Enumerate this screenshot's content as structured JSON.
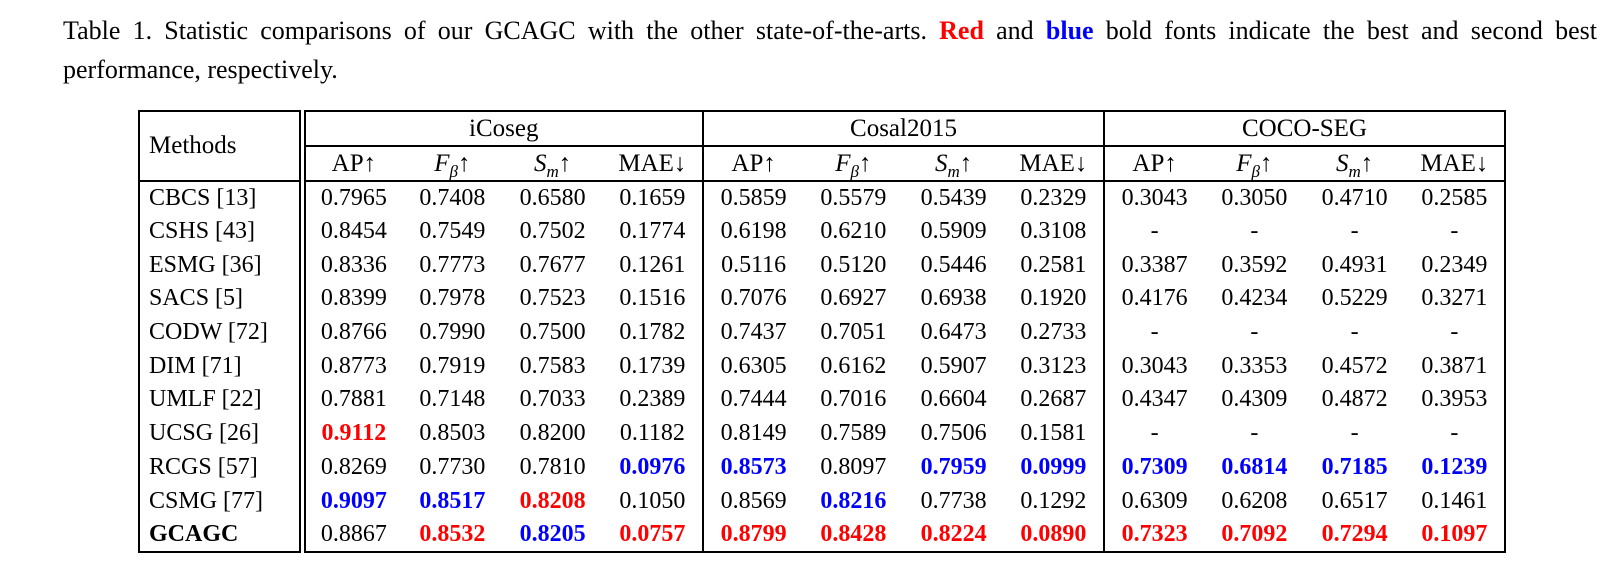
{
  "caption": {
    "part1": "Table 1. Statistic comparisons of our GCAGC with the other state-of-the-arts. ",
    "red_word": "Red",
    "part2": " and ",
    "blue_word": "blue",
    "part3": " bold fonts indicate the best and second best performance, respectively."
  },
  "colors": {
    "best": "#ff0000",
    "second_best": "#0000ff"
  },
  "table": {
    "methods_header": "Methods",
    "groups": [
      "iCoseg",
      "Cosal2015",
      "COCO-SEG"
    ],
    "metrics": [
      {
        "key": "ap",
        "label": "AP",
        "sub": "",
        "italic": false,
        "arrow": "↑"
      },
      {
        "key": "f-beta",
        "label": "F",
        "sub": "β",
        "italic": true,
        "arrow": "↑"
      },
      {
        "key": "s-m",
        "label": "S",
        "sub": "m",
        "italic": true,
        "arrow": "↑"
      },
      {
        "key": "mae",
        "label": "MAE",
        "sub": "",
        "italic": false,
        "arrow": "↓"
      }
    ],
    "rows": [
      {
        "method": "CBCS [13]",
        "bold": false,
        "values": [
          "0.7965",
          "0.7408",
          "0.6580",
          "0.1659",
          "0.5859",
          "0.5579",
          "0.5439",
          "0.2329",
          "0.3043",
          "0.3050",
          "0.4710",
          "0.2585"
        ],
        "styles": [
          "n",
          "n",
          "n",
          "n",
          "n",
          "n",
          "n",
          "n",
          "n",
          "n",
          "n",
          "n"
        ]
      },
      {
        "method": "CSHS [43]",
        "bold": false,
        "values": [
          "0.8454",
          "0.7549",
          "0.7502",
          "0.1774",
          "0.6198",
          "0.6210",
          "0.5909",
          "0.3108",
          "-",
          "-",
          "-",
          "-"
        ],
        "styles": [
          "n",
          "n",
          "n",
          "n",
          "n",
          "n",
          "n",
          "n",
          "n",
          "n",
          "n",
          "n"
        ]
      },
      {
        "method": "ESMG [36]",
        "bold": false,
        "values": [
          "0.8336",
          "0.7773",
          "0.7677",
          "0.1261",
          "0.5116",
          "0.5120",
          "0.5446",
          "0.2581",
          "0.3387",
          "0.3592",
          "0.4931",
          "0.2349"
        ],
        "styles": [
          "n",
          "n",
          "n",
          "n",
          "n",
          "n",
          "n",
          "n",
          "n",
          "n",
          "n",
          "n"
        ]
      },
      {
        "method": "SACS [5]",
        "bold": false,
        "values": [
          "0.8399",
          "0.7978",
          "0.7523",
          "0.1516",
          "0.7076",
          "0.6927",
          "0.6938",
          "0.1920",
          "0.4176",
          "0.4234",
          "0.5229",
          "0.3271"
        ],
        "styles": [
          "n",
          "n",
          "n",
          "n",
          "n",
          "n",
          "n",
          "n",
          "n",
          "n",
          "n",
          "n"
        ]
      },
      {
        "method": "CODW [72]",
        "bold": false,
        "values": [
          "0.8766",
          "0.7990",
          "0.7500",
          "0.1782",
          "0.7437",
          "0.7051",
          "0.6473",
          "0.2733",
          "-",
          "-",
          "-",
          "-"
        ],
        "styles": [
          "n",
          "n",
          "n",
          "n",
          "n",
          "n",
          "n",
          "n",
          "n",
          "n",
          "n",
          "n"
        ]
      },
      {
        "method": "DIM [71]",
        "bold": false,
        "values": [
          "0.8773",
          "0.7919",
          "0.7583",
          "0.1739",
          "0.6305",
          "0.6162",
          "0.5907",
          "0.3123",
          "0.3043",
          "0.3353",
          "0.4572",
          "0.3871"
        ],
        "styles": [
          "n",
          "n",
          "n",
          "n",
          "n",
          "n",
          "n",
          "n",
          "n",
          "n",
          "n",
          "n"
        ]
      },
      {
        "method": "UMLF [22]",
        "bold": false,
        "values": [
          "0.7881",
          "0.7148",
          "0.7033",
          "0.2389",
          "0.7444",
          "0.7016",
          "0.6604",
          "0.2687",
          "0.4347",
          "0.4309",
          "0.4872",
          "0.3953"
        ],
        "styles": [
          "n",
          "n",
          "n",
          "n",
          "n",
          "n",
          "n",
          "n",
          "n",
          "n",
          "n",
          "n"
        ]
      },
      {
        "method": "UCSG [26]",
        "bold": false,
        "values": [
          "0.9112",
          "0.8503",
          "0.8200",
          "0.1182",
          "0.8149",
          "0.7589",
          "0.7506",
          "0.1581",
          "-",
          "-",
          "-",
          "-"
        ],
        "styles": [
          "r",
          "n",
          "n",
          "n",
          "n",
          "n",
          "n",
          "n",
          "n",
          "n",
          "n",
          "n"
        ]
      },
      {
        "method": "RCGS [57]",
        "bold": false,
        "values": [
          "0.8269",
          "0.7730",
          "0.7810",
          "0.0976",
          "0.8573",
          "0.8097",
          "0.7959",
          "0.0999",
          "0.7309",
          "0.6814",
          "0.7185",
          "0.1239"
        ],
        "styles": [
          "n",
          "n",
          "n",
          "b",
          "b",
          "n",
          "b",
          "b",
          "b",
          "b",
          "b",
          "b"
        ]
      },
      {
        "method": "CSMG [77]",
        "bold": false,
        "values": [
          "0.9097",
          "0.8517",
          "0.8208",
          "0.1050",
          "0.8569",
          "0.8216",
          "0.7738",
          "0.1292",
          "0.6309",
          "0.6208",
          "0.6517",
          "0.1461"
        ],
        "styles": [
          "b",
          "b",
          "r",
          "n",
          "n",
          "b",
          "n",
          "n",
          "n",
          "n",
          "n",
          "n"
        ]
      },
      {
        "method": "GCAGC",
        "bold": true,
        "values": [
          "0.8867",
          "0.8532",
          "0.8205",
          "0.0757",
          "0.8799",
          "0.8428",
          "0.8224",
          "0.0890",
          "0.7323",
          "0.7092",
          "0.7294",
          "0.1097"
        ],
        "styles": [
          "n",
          "r",
          "b",
          "r",
          "r",
          "r",
          "r",
          "r",
          "r",
          "r",
          "r",
          "r"
        ]
      }
    ]
  }
}
